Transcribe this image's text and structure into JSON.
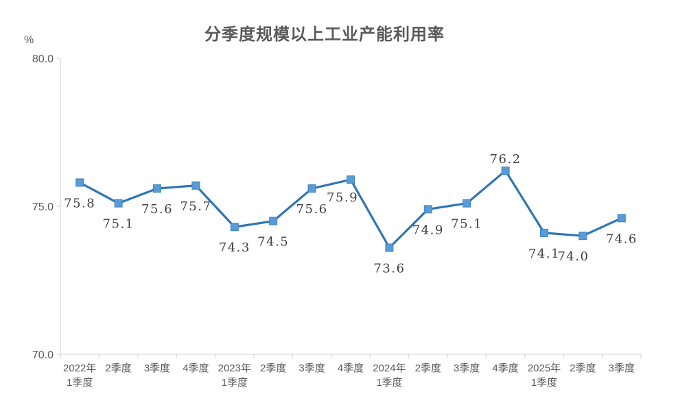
{
  "chart": {
    "title": "分季度规模以上工业产能利用率",
    "unit": "%"
  },
  "chart_data": {
    "type": "line",
    "title": "分季度规模以上工业产能利用率",
    "unit_label": "%",
    "categories": [
      [
        "2022年",
        "1季度"
      ],
      [
        "2季度"
      ],
      [
        "3季度"
      ],
      [
        "4季度"
      ],
      [
        "2023年",
        "1季度"
      ],
      [
        "2季度"
      ],
      [
        "3季度"
      ],
      [
        "4季度"
      ],
      [
        "2024年",
        "1季度"
      ],
      [
        "2季度"
      ],
      [
        "3季度"
      ],
      [
        "4季度"
      ],
      [
        "2025年",
        "1季度"
      ],
      [
        "2季度"
      ],
      [
        "3季度"
      ]
    ],
    "values": [
      75.8,
      75.1,
      75.6,
      75.7,
      74.3,
      74.5,
      75.6,
      75.9,
      73.6,
      74.9,
      75.1,
      76.2,
      74.1,
      74.0,
      74.6
    ],
    "data_labels": [
      "75.8",
      "75.1",
      "75.6",
      "75.7",
      "74.3",
      "74.5",
      "75.6",
      "75.9",
      "73.6",
      "74.9",
      "75.1",
      "76.2",
      "74.1",
      "74.0",
      "74.6"
    ],
    "label_placements": {
      "default": [
        0,
        36
      ],
      "overrides": {
        "7": [
          -12,
          32
        ],
        "11": [
          0,
          -11
        ],
        "13": [
          -14,
          36
        ]
      }
    },
    "ylim": [
      70,
      80
    ],
    "yticks": [
      {
        "value": 80,
        "label": "80.0"
      },
      {
        "value": 75,
        "label": "75.0"
      },
      {
        "value": 70,
        "label": "70.0"
      }
    ],
    "grid": false,
    "legend": "none",
    "colors": {
      "line": "#2e75b6",
      "marker_fill": "#5b9bd5",
      "marker_stroke": "#3b84c4",
      "axis": "#d9d9d9",
      "tick_label": "#595959",
      "data_label": "#3f3f3f",
      "title": "#595959",
      "background": "#ffffff"
    }
  }
}
